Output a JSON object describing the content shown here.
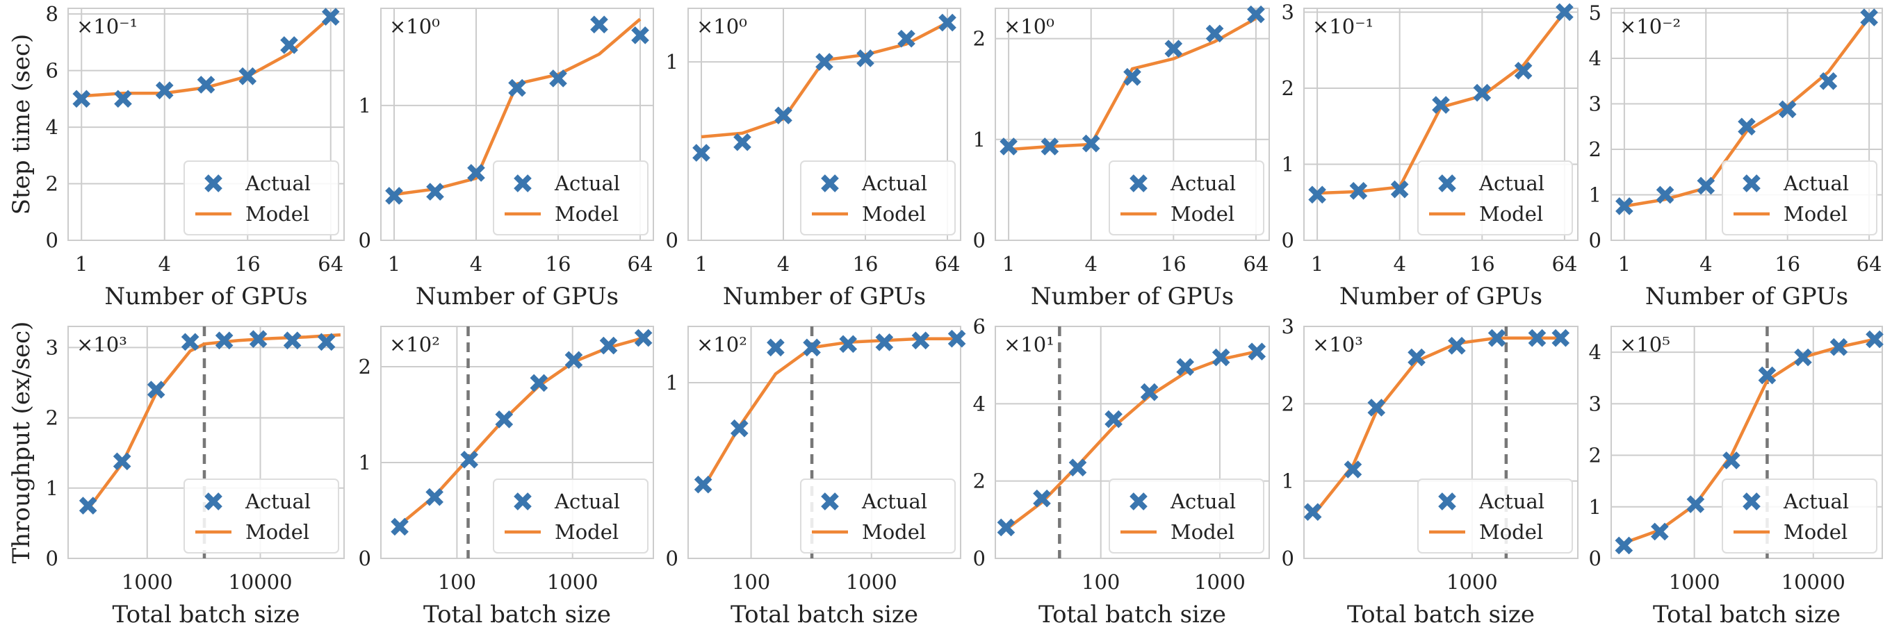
{
  "legend": {
    "actual": "Actual",
    "model": "Model"
  },
  "colors": {
    "actual": "#3a76af",
    "model": "#ef8636",
    "grid": "#cccccc",
    "vline": "#777777"
  },
  "chart_data": [
    {
      "type": "scatter+line",
      "xscale": "log2",
      "xlabel": "Number of GPUs",
      "ylabel": "Step time (sec)",
      "multiplier": "×10⁻¹",
      "xticks": [
        1,
        4,
        16,
        64
      ],
      "xtick_labels": [
        "1",
        "4",
        "16",
        "64"
      ],
      "xlim": [
        0.8,
        80
      ],
      "ylim": [
        0,
        8.2
      ],
      "yticks": [
        0,
        2,
        4,
        6,
        8
      ],
      "ytick_labels": [
        "0",
        "2",
        "4",
        "6",
        "8"
      ],
      "legend": "lower right",
      "actual": {
        "x": [
          1,
          2,
          4,
          8,
          16,
          32,
          64
        ],
        "y": [
          5.0,
          5.0,
          5.3,
          5.5,
          5.8,
          6.9,
          7.9
        ]
      },
      "model": {
        "x": [
          1,
          2,
          4,
          8,
          16,
          32,
          64
        ],
        "y": [
          5.1,
          5.2,
          5.2,
          5.4,
          5.8,
          6.6,
          7.9
        ]
      }
    },
    {
      "type": "scatter+line",
      "xscale": "log2",
      "xlabel": "Number of GPUs",
      "ylabel": "",
      "multiplier": "×10⁰",
      "xticks": [
        1,
        4,
        16,
        64
      ],
      "xtick_labels": [
        "1",
        "4",
        "16",
        "64"
      ],
      "xlim": [
        0.8,
        80
      ],
      "ylim": [
        0,
        1.72
      ],
      "yticks": [
        0,
        1
      ],
      "ytick_labels": [
        "0",
        "1"
      ],
      "legend": "lower right",
      "actual": {
        "x": [
          1,
          2,
          4,
          8,
          16,
          32,
          64
        ],
        "y": [
          0.33,
          0.36,
          0.5,
          1.13,
          1.2,
          1.6,
          1.52
        ]
      },
      "model": {
        "x": [
          1,
          2,
          4,
          8,
          16,
          32,
          64
        ],
        "y": [
          0.34,
          0.38,
          0.46,
          1.16,
          1.23,
          1.38,
          1.64
        ]
      }
    },
    {
      "type": "scatter+line",
      "xscale": "log2",
      "xlabel": "Number of GPUs",
      "ylabel": "",
      "multiplier": "×10⁰",
      "xticks": [
        1,
        4,
        16,
        64
      ],
      "xtick_labels": [
        "1",
        "4",
        "16",
        "64"
      ],
      "xlim": [
        0.8,
        80
      ],
      "ylim": [
        0,
        1.3
      ],
      "yticks": [
        0,
        1
      ],
      "ytick_labels": [
        "0",
        "1"
      ],
      "legend": "lower right",
      "actual": {
        "x": [
          1,
          2,
          4,
          8,
          16,
          32,
          64
        ],
        "y": [
          0.49,
          0.55,
          0.7,
          1.0,
          1.02,
          1.13,
          1.22
        ]
      },
      "model": {
        "x": [
          1,
          2,
          4,
          8,
          16,
          32,
          64
        ],
        "y": [
          0.58,
          0.6,
          0.68,
          1.01,
          1.04,
          1.1,
          1.22
        ]
      }
    },
    {
      "type": "scatter+line",
      "xscale": "log2",
      "xlabel": "Number of GPUs",
      "ylabel": "",
      "multiplier": "×10⁰",
      "xticks": [
        1,
        4,
        16,
        64
      ],
      "xtick_labels": [
        "1",
        "4",
        "16",
        "64"
      ],
      "xlim": [
        0.8,
        80
      ],
      "ylim": [
        0,
        2.3
      ],
      "yticks": [
        0,
        1,
        2
      ],
      "ytick_labels": [
        "0",
        "1",
        "2"
      ],
      "legend": "lower right",
      "actual": {
        "x": [
          1,
          2,
          4,
          8,
          16,
          32,
          64
        ],
        "y": [
          0.93,
          0.93,
          0.96,
          1.62,
          1.9,
          2.05,
          2.24
        ]
      },
      "model": {
        "x": [
          1,
          2,
          4,
          8,
          16,
          32,
          64
        ],
        "y": [
          0.9,
          0.93,
          0.95,
          1.7,
          1.8,
          1.97,
          2.2
        ]
      }
    },
    {
      "type": "scatter+line",
      "xscale": "log2",
      "xlabel": "Number of GPUs",
      "ylabel": "",
      "multiplier": "×10⁻¹",
      "xticks": [
        1,
        4,
        16,
        64
      ],
      "xtick_labels": [
        "1",
        "4",
        "16",
        "64"
      ],
      "xlim": [
        0.8,
        80
      ],
      "ylim": [
        0,
        3.05
      ],
      "yticks": [
        0,
        1,
        2,
        3
      ],
      "ytick_labels": [
        "0",
        "1",
        "2",
        "3"
      ],
      "legend": "lower right",
      "actual": {
        "x": [
          1,
          2,
          4,
          8,
          16,
          32,
          64
        ],
        "y": [
          0.6,
          0.65,
          0.67,
          1.78,
          1.94,
          2.23,
          3.0
        ]
      },
      "model": {
        "x": [
          1,
          2,
          4,
          8,
          16,
          32,
          64
        ],
        "y": [
          0.62,
          0.64,
          0.7,
          1.75,
          1.9,
          2.3,
          3.0
        ]
      }
    },
    {
      "type": "scatter+line",
      "xscale": "log2",
      "xlabel": "Number of GPUs",
      "ylabel": "",
      "multiplier": "×10⁻²",
      "xticks": [
        1,
        4,
        16,
        64
      ],
      "xtick_labels": [
        "1",
        "4",
        "16",
        "64"
      ],
      "xlim": [
        0.8,
        80
      ],
      "ylim": [
        0,
        5.1
      ],
      "yticks": [
        0,
        1,
        2,
        3,
        4,
        5
      ],
      "ytick_labels": [
        "0",
        "1",
        "2",
        "3",
        "4",
        "5"
      ],
      "legend": "lower right",
      "actual": {
        "x": [
          1,
          2,
          4,
          8,
          16,
          32,
          64
        ],
        "y": [
          0.75,
          1.0,
          1.2,
          2.5,
          2.88,
          3.5,
          4.9
        ]
      },
      "model": {
        "x": [
          1,
          2,
          4,
          8,
          16,
          32,
          64
        ],
        "y": [
          0.75,
          0.9,
          1.15,
          2.4,
          2.95,
          3.7,
          4.9
        ]
      }
    },
    {
      "type": "scatter+line",
      "xscale": "log10",
      "xlabel": "Total batch size",
      "ylabel": "Throughput (ex/sec)",
      "multiplier": "×10³",
      "xticks": [
        1000,
        10000
      ],
      "xtick_labels": [
        "1000",
        "10000"
      ],
      "xlim": [
        200,
        55000
      ],
      "ylim": [
        0,
        3.3
      ],
      "yticks": [
        0,
        1,
        2,
        3
      ],
      "ytick_labels": [
        "0",
        "1",
        "2",
        "3"
      ],
      "legend": "lower right",
      "vline": 3200,
      "actual": {
        "x": [
          300,
          600,
          1200,
          2400,
          4800,
          9600,
          19200,
          38400
        ],
        "y": [
          0.75,
          1.38,
          2.4,
          3.08,
          3.1,
          3.12,
          3.1,
          3.08
        ]
      },
      "model": {
        "x": [
          300,
          600,
          1200,
          2400,
          3200,
          6400,
          12800,
          25600,
          51200
        ],
        "y": [
          0.7,
          1.35,
          2.35,
          2.95,
          3.05,
          3.1,
          3.13,
          3.15,
          3.18
        ]
      }
    },
    {
      "type": "scatter+line",
      "xscale": "log10",
      "xlabel": "Total batch size",
      "ylabel": "",
      "multiplier": "×10²",
      "xticks": [
        100,
        1000
      ],
      "xtick_labels": [
        "100",
        "1000"
      ],
      "xlim": [
        22,
        5000
      ],
      "ylim": [
        0,
        2.42
      ],
      "yticks": [
        0,
        1,
        2
      ],
      "ytick_labels": [
        "0",
        "1",
        "2"
      ],
      "legend": "lower right",
      "vline": 125,
      "actual": {
        "x": [
          32,
          64,
          128,
          256,
          512,
          1024,
          2048,
          4096
        ],
        "y": [
          0.33,
          0.64,
          1.03,
          1.45,
          1.83,
          2.07,
          2.22,
          2.3
        ]
      },
      "model": {
        "x": [
          32,
          64,
          128,
          256,
          512,
          1024,
          2048,
          4096
        ],
        "y": [
          0.35,
          0.65,
          1.05,
          1.45,
          1.8,
          2.05,
          2.2,
          2.3
        ]
      }
    },
    {
      "type": "scatter+line",
      "xscale": "log10",
      "xlabel": "Total batch size",
      "ylabel": "",
      "multiplier": "×10²",
      "xticks": [
        100,
        1000
      ],
      "xtick_labels": [
        "100",
        "1000"
      ],
      "xlim": [
        30,
        5500
      ],
      "ylim": [
        0,
        1.32
      ],
      "yticks": [
        0,
        1
      ],
      "ytick_labels": [
        "0",
        "1"
      ],
      "legend": "lower right",
      "vline": 320,
      "actual": {
        "x": [
          40,
          80,
          160,
          320,
          640,
          1280,
          2560,
          5120
        ],
        "y": [
          0.42,
          0.74,
          1.2,
          1.2,
          1.22,
          1.23,
          1.24,
          1.25
        ]
      },
      "model": {
        "x": [
          40,
          80,
          160,
          320,
          640,
          1280,
          2560,
          5120
        ],
        "y": [
          0.4,
          0.75,
          1.05,
          1.2,
          1.23,
          1.24,
          1.25,
          1.25
        ]
      }
    },
    {
      "type": "scatter+line",
      "xscale": "log10",
      "xlabel": "Total batch size",
      "ylabel": "",
      "multiplier": "×10¹",
      "xticks": [
        100,
        1000
      ],
      "xtick_labels": [
        "100",
        "1000"
      ],
      "xlim": [
        13,
        2600
      ],
      "ylim": [
        0,
        6.0
      ],
      "yticks": [
        0,
        2,
        4,
        6
      ],
      "ytick_labels": [
        "0",
        "2",
        "4",
        "6"
      ],
      "legend": "lower right",
      "vline": 45,
      "actual": {
        "x": [
          16,
          32,
          64,
          128,
          256,
          512,
          1024,
          2048
        ],
        "y": [
          0.8,
          1.55,
          2.35,
          3.6,
          4.3,
          4.95,
          5.2,
          5.35
        ]
      },
      "model": {
        "x": [
          16,
          32,
          64,
          128,
          256,
          512,
          1024,
          2048
        ],
        "y": [
          0.75,
          1.45,
          2.4,
          3.4,
          4.2,
          4.8,
          5.15,
          5.35
        ]
      }
    },
    {
      "type": "scatter+line",
      "xscale": "log10",
      "xlabel": "Total batch size",
      "ylabel": "",
      "multiplier": "×10³",
      "xticks": [
        1000
      ],
      "xtick_labels": [
        "1000"
      ],
      "xlim": [
        55,
        6200
      ],
      "ylim": [
        0,
        3.0
      ],
      "yticks": [
        0,
        1,
        2,
        3
      ],
      "ytick_labels": [
        "0",
        "1",
        "2",
        "3"
      ],
      "legend": "lower right",
      "vline": 1800,
      "actual": {
        "x": [
          64,
          128,
          192,
          384,
          768,
          1536,
          3072,
          4608
        ],
        "y": [
          0.6,
          1.15,
          1.95,
          2.6,
          2.75,
          2.85,
          2.85,
          2.85
        ]
      },
      "model": {
        "x": [
          64,
          128,
          192,
          384,
          768,
          1536,
          3072,
          4608
        ],
        "y": [
          0.55,
          1.2,
          1.9,
          2.55,
          2.78,
          2.85,
          2.85,
          2.85
        ]
      }
    },
    {
      "type": "scatter+line",
      "xscale": "log10",
      "xlabel": "Total batch size",
      "ylabel": "",
      "multiplier": "×10⁵",
      "xticks": [
        1000,
        10000
      ],
      "xtick_labels": [
        "1000",
        "10000"
      ],
      "xlim": [
        200,
        38000
      ],
      "ylim": [
        0,
        4.5
      ],
      "yticks": [
        0,
        1,
        2,
        3,
        4
      ],
      "ytick_labels": [
        "0",
        "1",
        "2",
        "3",
        "4"
      ],
      "legend": "lower right",
      "vline": 4096,
      "actual": {
        "x": [
          256,
          512,
          1024,
          2048,
          4096,
          8192,
          16384,
          32768
        ],
        "y": [
          0.25,
          0.52,
          1.05,
          1.9,
          3.55,
          3.9,
          4.1,
          4.25
        ]
      },
      "model": {
        "x": [
          256,
          512,
          1024,
          2048,
          4096,
          8192,
          16384,
          32768
        ],
        "y": [
          0.3,
          0.55,
          1.05,
          2.0,
          3.45,
          3.9,
          4.1,
          4.25
        ]
      }
    }
  ]
}
